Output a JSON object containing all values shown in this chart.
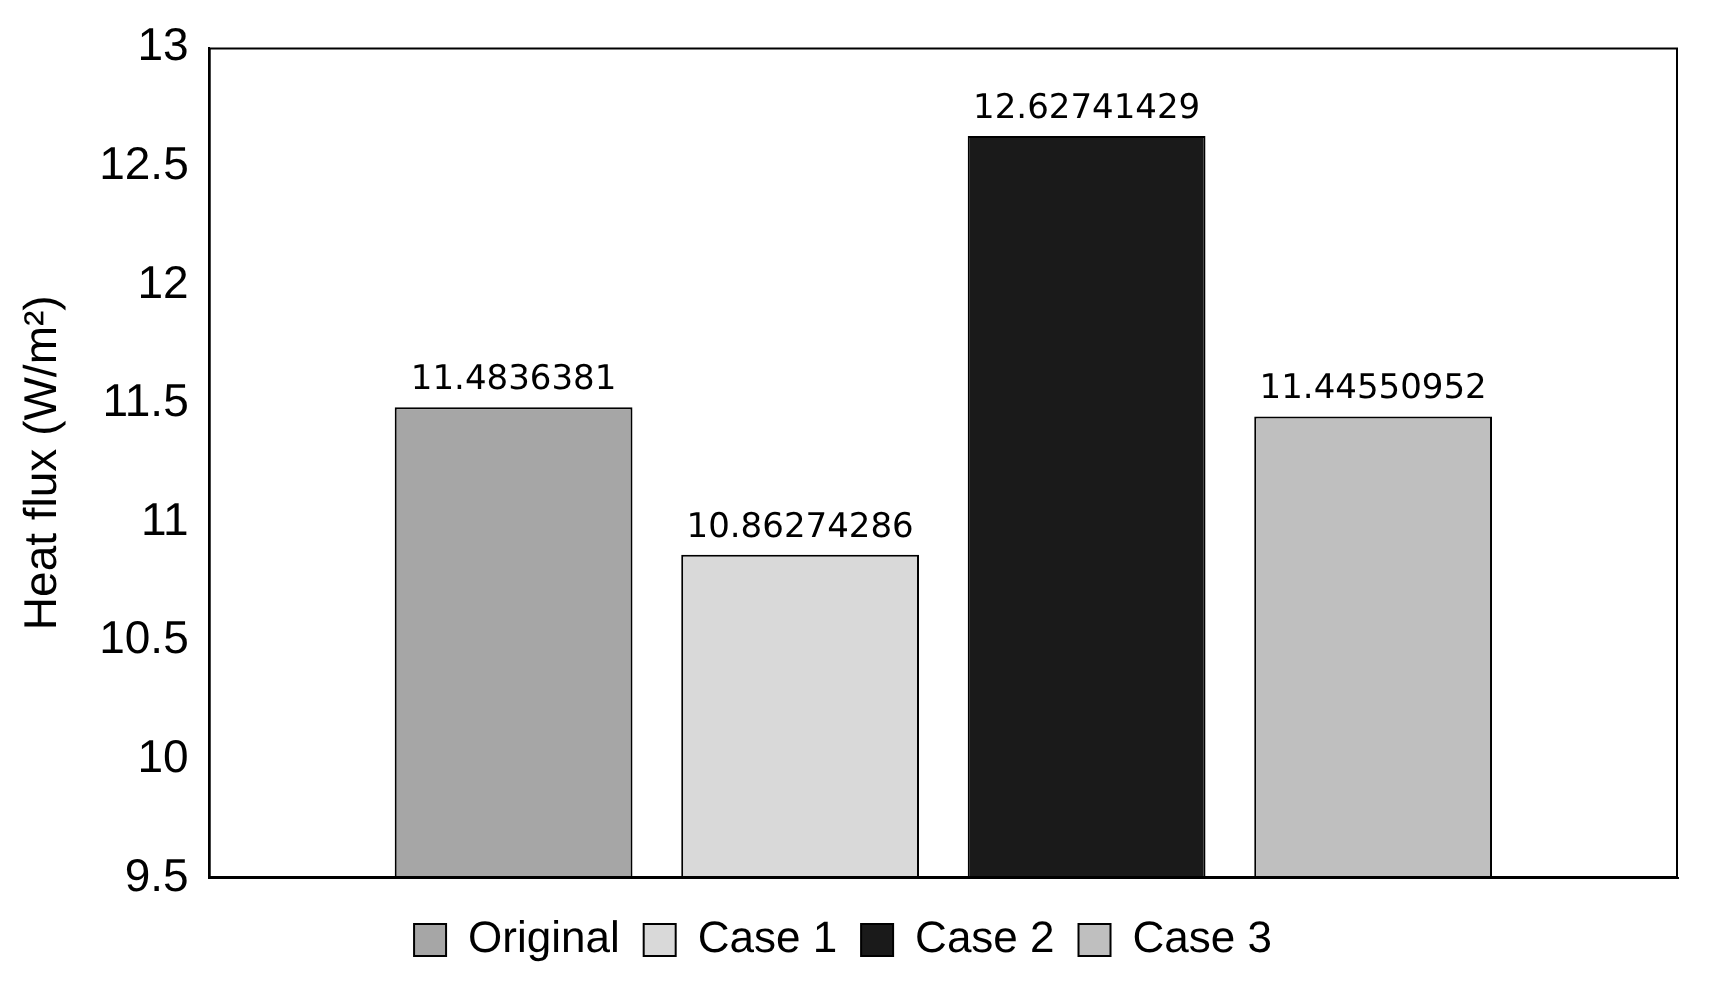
{
  "chart_data": {
    "type": "bar",
    "ylabel": "Heat flux (W/m²)",
    "categories": [
      null
    ],
    "series": [
      {
        "name": "Original",
        "color": "#a6a6a6",
        "values": [
          11.4836381
        ]
      },
      {
        "name": "Case 1",
        "color": "#d9d9d9",
        "values": [
          10.86274286
        ]
      },
      {
        "name": "Case 2",
        "color": "#1a1a1a",
        "values": [
          12.62741429
        ]
      },
      {
        "name": "Case 3",
        "color": "#bfbfbf",
        "values": [
          11.44550952
        ]
      }
    ],
    "ylim": [
      9.5,
      13
    ],
    "yticks": [
      9.5,
      10,
      10.5,
      11,
      11.5,
      12,
      12.5,
      13
    ],
    "grid": false,
    "legend": "bottom",
    "data_labels": true
  }
}
